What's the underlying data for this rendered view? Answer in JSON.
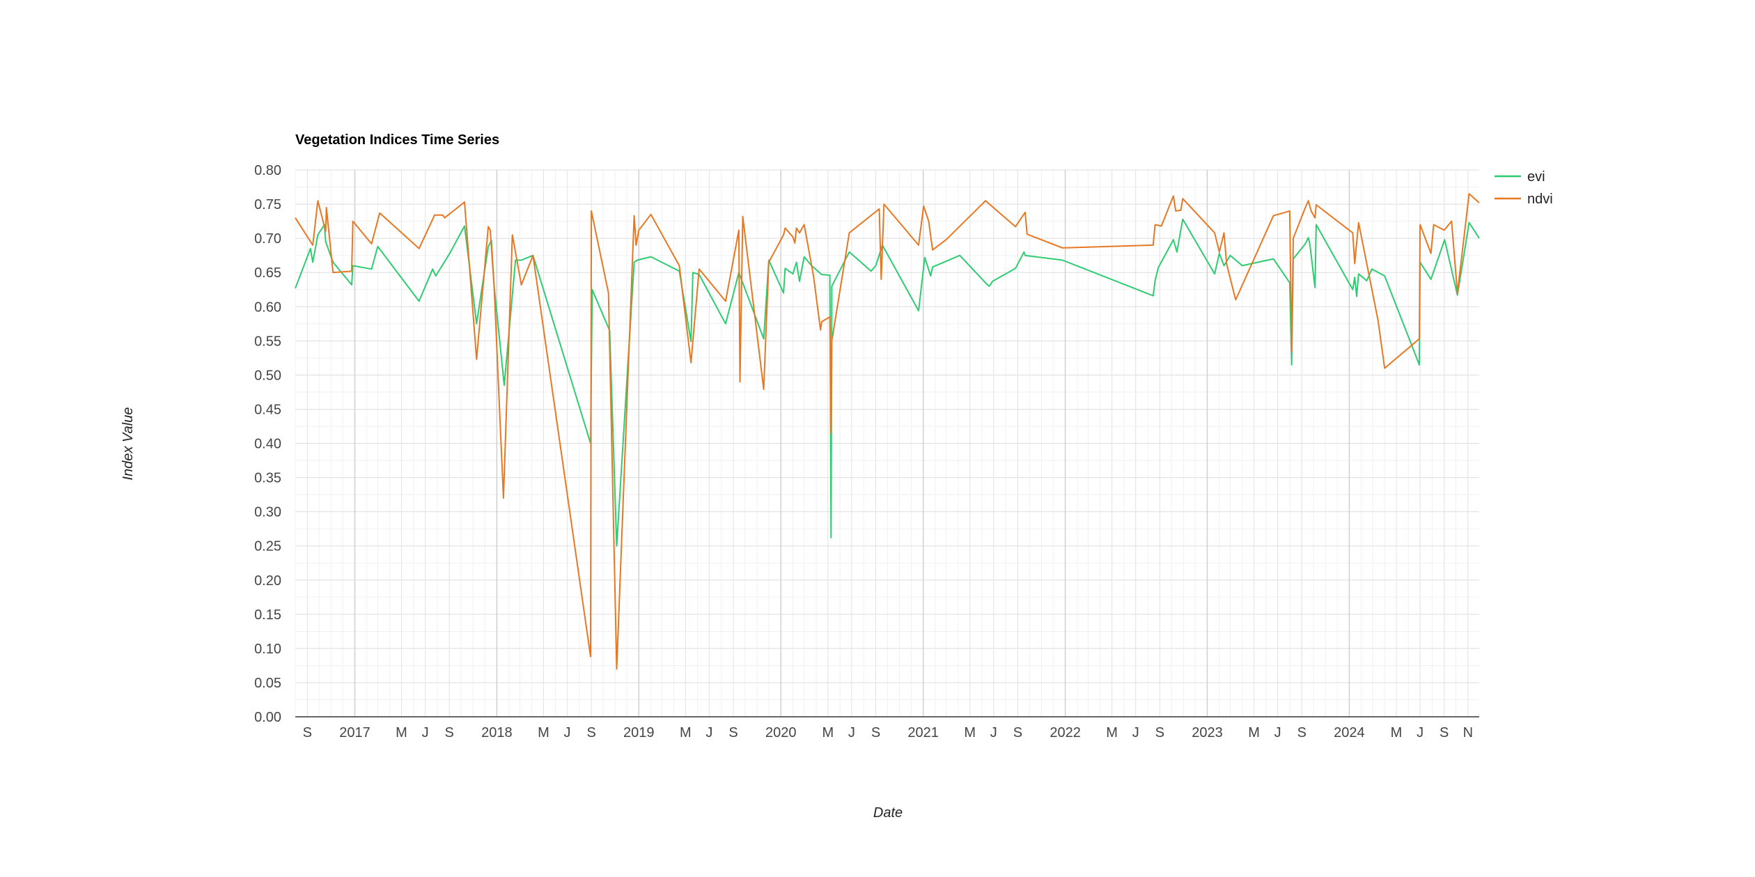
{
  "chart_data": {
    "type": "line",
    "title": "Vegetation Indices Time Series",
    "xlabel": "Date",
    "ylabel": "Index Value",
    "x_axis_type": "date",
    "xlim": [
      "2016-08-01",
      "2024-11-30"
    ],
    "ylim": [
      0,
      0.8
    ],
    "y_ticks": [
      "0.00",
      "0.05",
      "0.10",
      "0.15",
      "0.20",
      "0.25",
      "0.30",
      "0.35",
      "0.40",
      "0.45",
      "0.50",
      "0.55",
      "0.60",
      "0.65",
      "0.70",
      "0.75",
      "0.80"
    ],
    "x_ticks": [
      {
        "label": "S",
        "date": "2016-09-01",
        "major": false
      },
      {
        "label": "2017",
        "date": "2017-01-01",
        "major": true
      },
      {
        "label": "M",
        "date": "2017-05-01",
        "major": false
      },
      {
        "label": "J",
        "date": "2017-07-01",
        "major": false
      },
      {
        "label": "S",
        "date": "2017-09-01",
        "major": false
      },
      {
        "label": "2018",
        "date": "2018-01-01",
        "major": true
      },
      {
        "label": "M",
        "date": "2018-05-01",
        "major": false
      },
      {
        "label": "J",
        "date": "2018-07-01",
        "major": false
      },
      {
        "label": "S",
        "date": "2018-09-01",
        "major": false
      },
      {
        "label": "2019",
        "date": "2019-01-01",
        "major": true
      },
      {
        "label": "M",
        "date": "2019-05-01",
        "major": false
      },
      {
        "label": "J",
        "date": "2019-07-01",
        "major": false
      },
      {
        "label": "S",
        "date": "2019-09-01",
        "major": false
      },
      {
        "label": "2020",
        "date": "2020-01-01",
        "major": true
      },
      {
        "label": "M",
        "date": "2020-05-01",
        "major": false
      },
      {
        "label": "J",
        "date": "2020-07-01",
        "major": false
      },
      {
        "label": "S",
        "date": "2020-09-01",
        "major": false
      },
      {
        "label": "2021",
        "date": "2021-01-01",
        "major": true
      },
      {
        "label": "M",
        "date": "2021-05-01",
        "major": false
      },
      {
        "label": "J",
        "date": "2021-07-01",
        "major": false
      },
      {
        "label": "S",
        "date": "2021-09-01",
        "major": false
      },
      {
        "label": "2022",
        "date": "2022-01-01",
        "major": true
      },
      {
        "label": "M",
        "date": "2022-05-01",
        "major": false
      },
      {
        "label": "J",
        "date": "2022-07-01",
        "major": false
      },
      {
        "label": "S",
        "date": "2022-09-01",
        "major": false
      },
      {
        "label": "2023",
        "date": "2023-01-01",
        "major": true
      },
      {
        "label": "M",
        "date": "2023-05-01",
        "major": false
      },
      {
        "label": "J",
        "date": "2023-07-01",
        "major": false
      },
      {
        "label": "S",
        "date": "2023-09-01",
        "major": false
      },
      {
        "label": "2024",
        "date": "2024-01-01",
        "major": true
      },
      {
        "label": "M",
        "date": "2024-05-01",
        "major": false
      },
      {
        "label": "J",
        "date": "2024-07-01",
        "major": false
      },
      {
        "label": "S",
        "date": "2024-09-01",
        "major": false
      },
      {
        "label": "N",
        "date": "2024-11-01",
        "major": false
      }
    ],
    "grid": true,
    "legend_position": "right",
    "series": [
      {
        "name": "evi",
        "color": "#2ecc71",
        "points": [
          [
            "2016-08-01",
            0.627
          ],
          [
            "2016-09-09",
            0.685
          ],
          [
            "2016-09-15",
            0.665
          ],
          [
            "2016-09-28",
            0.705
          ],
          [
            "2016-10-15",
            0.72
          ],
          [
            "2016-10-18",
            0.695
          ],
          [
            "2016-11-06",
            0.665
          ],
          [
            "2016-12-24",
            0.632
          ],
          [
            "2016-12-27",
            0.66
          ],
          [
            "2017-02-13",
            0.655
          ],
          [
            "2017-03-01",
            0.688
          ],
          [
            "2017-06-15",
            0.608
          ],
          [
            "2017-07-20",
            0.655
          ],
          [
            "2017-07-28",
            0.645
          ],
          [
            "2017-09-02",
            0.678
          ],
          [
            "2017-10-10",
            0.718
          ],
          [
            "2017-11-10",
            0.575
          ],
          [
            "2017-12-10",
            0.688
          ],
          [
            "2017-12-18",
            0.697
          ],
          [
            "2017-12-25",
            0.63
          ],
          [
            "2018-01-20",
            0.485
          ],
          [
            "2018-02-18",
            0.668
          ],
          [
            "2018-03-05",
            0.668
          ],
          [
            "2018-04-04",
            0.675
          ],
          [
            "2018-08-30",
            0.4
          ],
          [
            "2018-09-03",
            0.625
          ],
          [
            "2018-10-18",
            0.565
          ],
          [
            "2018-11-05",
            0.25
          ],
          [
            "2018-12-20",
            0.665
          ],
          [
            "2018-12-28",
            0.668
          ],
          [
            "2019-02-01",
            0.673
          ],
          [
            "2019-04-15",
            0.652
          ],
          [
            "2019-05-15",
            0.549
          ],
          [
            "2019-05-20",
            0.65
          ],
          [
            "2019-06-05",
            0.647
          ],
          [
            "2019-08-12",
            0.575
          ],
          [
            "2019-09-15",
            0.65
          ],
          [
            "2019-11-18",
            0.553
          ],
          [
            "2019-12-01",
            0.668
          ],
          [
            "2020-01-08",
            0.62
          ],
          [
            "2020-01-12",
            0.656
          ],
          [
            "2020-02-01",
            0.648
          ],
          [
            "2020-02-10",
            0.665
          ],
          [
            "2020-02-18",
            0.637
          ],
          [
            "2020-03-01",
            0.673
          ],
          [
            "2020-03-20",
            0.66
          ],
          [
            "2020-04-15",
            0.647
          ],
          [
            "2020-05-06",
            0.646
          ],
          [
            "2020-05-09",
            0.262
          ],
          [
            "2020-05-11",
            0.63
          ],
          [
            "2020-06-25",
            0.68
          ],
          [
            "2020-08-20",
            0.652
          ],
          [
            "2020-09-01",
            0.66
          ],
          [
            "2020-09-18",
            0.69
          ],
          [
            "2020-12-20",
            0.594
          ],
          [
            "2021-01-05",
            0.672
          ],
          [
            "2021-01-20",
            0.645
          ],
          [
            "2021-01-25",
            0.658
          ],
          [
            "2021-04-05",
            0.675
          ],
          [
            "2021-06-15",
            0.632
          ],
          [
            "2021-06-20",
            0.63
          ],
          [
            "2021-06-28",
            0.637
          ],
          [
            "2021-08-26",
            0.656
          ],
          [
            "2021-09-17",
            0.68
          ],
          [
            "2021-09-20",
            0.675
          ],
          [
            "2021-12-25",
            0.668
          ],
          [
            "2022-08-15",
            0.616
          ],
          [
            "2022-08-20",
            0.638
          ],
          [
            "2022-08-28",
            0.657
          ],
          [
            "2022-10-06",
            0.698
          ],
          [
            "2022-10-15",
            0.68
          ],
          [
            "2022-10-30",
            0.728
          ],
          [
            "2023-01-20",
            0.648
          ],
          [
            "2023-02-01",
            0.678
          ],
          [
            "2023-02-13",
            0.66
          ],
          [
            "2023-03-01",
            0.675
          ],
          [
            "2023-04-01",
            0.66
          ],
          [
            "2023-06-20",
            0.67
          ],
          [
            "2023-08-01",
            0.635
          ],
          [
            "2023-08-06",
            0.515
          ],
          [
            "2023-08-10",
            0.67
          ],
          [
            "2023-09-10",
            0.692
          ],
          [
            "2023-09-18",
            0.701
          ],
          [
            "2023-09-22",
            0.69
          ],
          [
            "2023-10-05",
            0.628
          ],
          [
            "2023-10-08",
            0.72
          ],
          [
            "2024-01-10",
            0.625
          ],
          [
            "2024-01-15",
            0.643
          ],
          [
            "2024-01-20",
            0.615
          ],
          [
            "2024-01-25",
            0.648
          ],
          [
            "2024-02-15",
            0.638
          ],
          [
            "2024-02-28",
            0.655
          ],
          [
            "2024-04-01",
            0.645
          ],
          [
            "2024-06-29",
            0.515
          ],
          [
            "2024-07-01",
            0.665
          ],
          [
            "2024-07-29",
            0.64
          ],
          [
            "2024-09-02",
            0.698
          ],
          [
            "2024-10-05",
            0.617
          ],
          [
            "2024-11-04",
            0.723
          ],
          [
            "2024-11-30",
            0.7
          ]
        ]
      },
      {
        "name": "ndvi",
        "color": "#e87722",
        "points": [
          [
            "2016-08-01",
            0.73
          ],
          [
            "2016-09-15",
            0.69
          ],
          [
            "2016-09-28",
            0.755
          ],
          [
            "2016-10-18",
            0.71
          ],
          [
            "2016-10-20",
            0.745
          ],
          [
            "2016-11-06",
            0.65
          ],
          [
            "2016-12-24",
            0.652
          ],
          [
            "2016-12-27",
            0.725
          ],
          [
            "2017-02-13",
            0.692
          ],
          [
            "2017-03-06",
            0.737
          ],
          [
            "2017-06-15",
            0.685
          ],
          [
            "2017-07-25",
            0.734
          ],
          [
            "2017-08-15",
            0.734
          ],
          [
            "2017-08-20",
            0.73
          ],
          [
            "2017-10-10",
            0.753
          ],
          [
            "2017-11-10",
            0.523
          ],
          [
            "2017-12-10",
            0.717
          ],
          [
            "2017-12-15",
            0.712
          ],
          [
            "2017-12-25",
            0.63
          ],
          [
            "2018-01-18",
            0.32
          ],
          [
            "2018-02-10",
            0.705
          ],
          [
            "2018-03-05",
            0.632
          ],
          [
            "2018-04-04",
            0.675
          ],
          [
            "2018-08-30",
            0.088
          ],
          [
            "2018-09-01",
            0.74
          ],
          [
            "2018-10-15",
            0.62
          ],
          [
            "2018-11-05",
            0.07
          ],
          [
            "2018-12-20",
            0.733
          ],
          [
            "2018-12-25",
            0.69
          ],
          [
            "2019-01-01",
            0.712
          ],
          [
            "2019-02-01",
            0.735
          ],
          [
            "2019-04-15",
            0.66
          ],
          [
            "2019-05-15",
            0.518
          ],
          [
            "2019-06-05",
            0.655
          ],
          [
            "2019-08-12",
            0.608
          ],
          [
            "2019-09-15",
            0.712
          ],
          [
            "2019-09-18",
            0.49
          ],
          [
            "2019-09-25",
            0.732
          ],
          [
            "2019-11-18",
            0.479
          ],
          [
            "2019-12-01",
            0.665
          ],
          [
            "2020-01-08",
            0.705
          ],
          [
            "2020-01-12",
            0.715
          ],
          [
            "2020-02-01",
            0.702
          ],
          [
            "2020-02-06",
            0.693
          ],
          [
            "2020-02-10",
            0.715
          ],
          [
            "2020-02-18",
            0.708
          ],
          [
            "2020-03-01",
            0.72
          ],
          [
            "2020-03-25",
            0.645
          ],
          [
            "2020-04-12",
            0.566
          ],
          [
            "2020-04-15",
            0.578
          ],
          [
            "2020-05-06",
            0.585
          ],
          [
            "2020-05-09",
            0.415
          ],
          [
            "2020-05-11",
            0.55
          ],
          [
            "2020-06-25",
            0.708
          ],
          [
            "2020-09-10",
            0.743
          ],
          [
            "2020-09-15",
            0.64
          ],
          [
            "2020-09-22",
            0.75
          ],
          [
            "2020-12-20",
            0.69
          ],
          [
            "2021-01-02",
            0.747
          ],
          [
            "2021-01-15",
            0.725
          ],
          [
            "2021-01-25",
            0.683
          ],
          [
            "2021-03-01",
            0.698
          ],
          [
            "2021-06-10",
            0.755
          ],
          [
            "2021-08-26",
            0.717
          ],
          [
            "2021-09-20",
            0.738
          ],
          [
            "2021-09-25",
            0.706
          ],
          [
            "2021-12-25",
            0.686
          ],
          [
            "2022-08-15",
            0.69
          ],
          [
            "2022-08-20",
            0.72
          ],
          [
            "2022-09-05",
            0.718
          ],
          [
            "2022-10-06",
            0.762
          ],
          [
            "2022-10-12",
            0.74
          ],
          [
            "2022-10-25",
            0.741
          ],
          [
            "2022-10-30",
            0.758
          ],
          [
            "2023-01-20",
            0.708
          ],
          [
            "2023-02-01",
            0.68
          ],
          [
            "2023-02-13",
            0.708
          ],
          [
            "2023-02-20",
            0.662
          ],
          [
            "2023-03-15",
            0.61
          ],
          [
            "2023-06-20",
            0.733
          ],
          [
            "2023-08-01",
            0.74
          ],
          [
            "2023-08-06",
            0.535
          ],
          [
            "2023-08-10",
            0.7
          ],
          [
            "2023-09-10",
            0.745
          ],
          [
            "2023-09-18",
            0.755
          ],
          [
            "2023-09-25",
            0.74
          ],
          [
            "2023-10-05",
            0.73
          ],
          [
            "2023-10-08",
            0.749
          ],
          [
            "2024-01-10",
            0.708
          ],
          [
            "2024-01-15",
            0.663
          ],
          [
            "2024-01-25",
            0.723
          ],
          [
            "2024-03-01",
            0.62
          ],
          [
            "2024-03-15",
            0.58
          ],
          [
            "2024-04-01",
            0.51
          ],
          [
            "2024-06-29",
            0.553
          ],
          [
            "2024-07-01",
            0.72
          ],
          [
            "2024-07-29",
            0.678
          ],
          [
            "2024-08-05",
            0.72
          ],
          [
            "2024-09-01",
            0.712
          ],
          [
            "2024-09-20",
            0.725
          ],
          [
            "2024-10-05",
            0.62
          ],
          [
            "2024-11-04",
            0.765
          ],
          [
            "2024-11-30",
            0.752
          ]
        ]
      }
    ]
  }
}
